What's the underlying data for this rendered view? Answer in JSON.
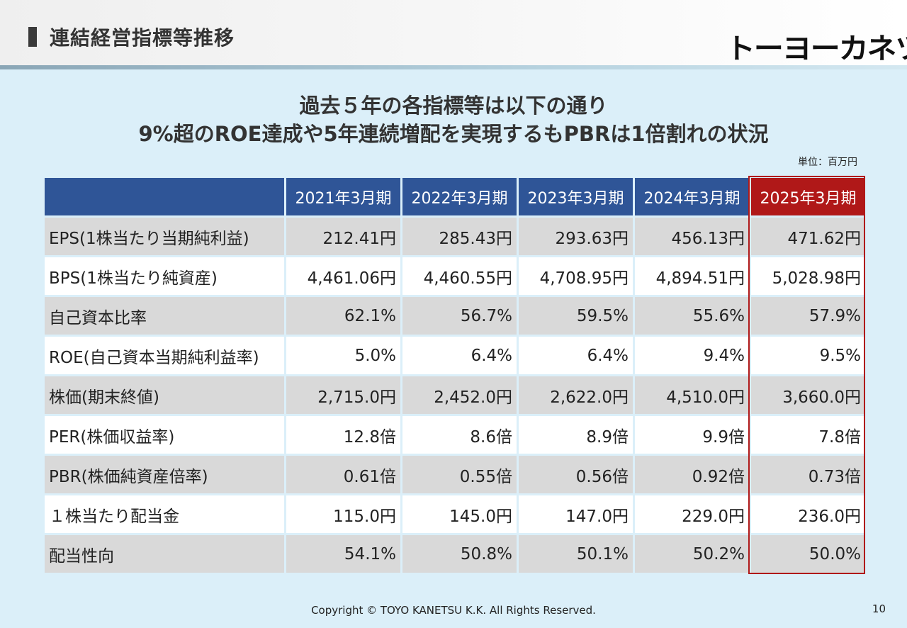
{
  "header": {
    "title": "連結経営指標等推移",
    "logo_text": "トーヨーカネツ"
  },
  "headline": {
    "line1": "過去５年の各指標等は以下の通り",
    "line2": "9%超のROE達成や5年連続増配を実現するもPBRは1倍割れの状況"
  },
  "unit_note": "単位：百万円",
  "table": {
    "columns": [
      "2021年3月期",
      "2022年3月期",
      "2023年3月期",
      "2024年3月期",
      "2025年3月期"
    ],
    "rows": [
      {
        "label": "EPS(1株当たり当期純利益)",
        "values": [
          "212.41円",
          "285.43円",
          "293.63円",
          "456.13円",
          "471.62円"
        ]
      },
      {
        "label": "BPS(1株当たり純資産)",
        "values": [
          "4,461.06円",
          "4,460.55円",
          "4,708.95円",
          "4,894.51円",
          "5,028.98円"
        ]
      },
      {
        "label": "自己資本比率",
        "values": [
          "62.1%",
          "56.7%",
          "59.5%",
          "55.6%",
          "57.9%"
        ]
      },
      {
        "label": "ROE(自己資本当期純利益率)",
        "values": [
          "5.0%",
          "6.4%",
          "6.4%",
          "9.4%",
          "9.5%"
        ]
      },
      {
        "label": "株価(期末終値)",
        "values": [
          "2,715.0円",
          "2,452.0円",
          "2,622.0円",
          "4,510.0円",
          "3,660.0円"
        ]
      },
      {
        "label": "PER(株価収益率)",
        "values": [
          "12.8倍",
          "8.6倍",
          "8.9倍",
          "9.9倍",
          "7.8倍"
        ]
      },
      {
        "label": "PBR(株価純資産倍率)",
        "values": [
          "0.61倍",
          "0.55倍",
          "0.56倍",
          "0.92倍",
          "0.73倍"
        ]
      },
      {
        "label": "１株当たり配当金",
        "values": [
          "115.0円",
          "145.0円",
          "147.0円",
          "229.0円",
          "236.0円"
        ]
      },
      {
        "label": "配当性向",
        "values": [
          "54.1%",
          "50.8%",
          "50.1%",
          "50.2%",
          "50.0%"
        ]
      }
    ]
  },
  "footer": {
    "copyright": "Copyright © TOYO KANETSU K.K. All Rights Reserved.",
    "page_number": "10"
  },
  "colors": {
    "header_blue": "#2f5597",
    "highlight_red": "#b01818",
    "background": "#dbeff9",
    "row_gray": "#d9d9d9"
  }
}
